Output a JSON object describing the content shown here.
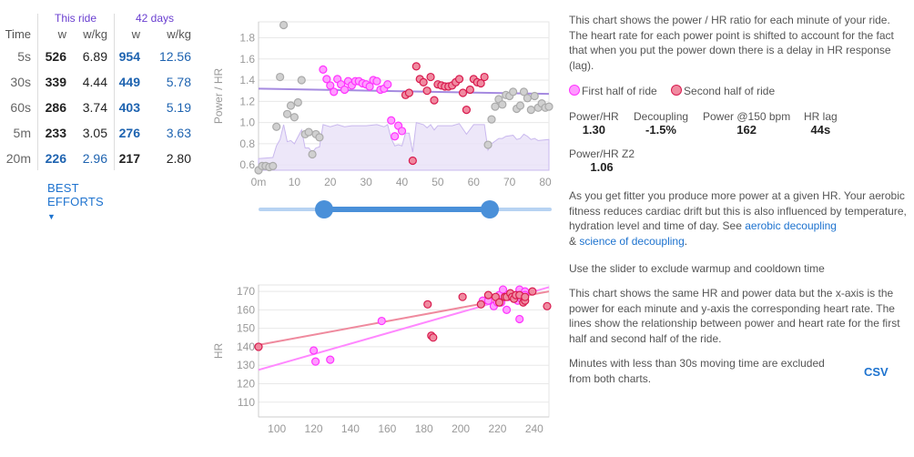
{
  "table": {
    "this_ride_label": "This ride",
    "days_label": "42 days",
    "time_header": "Time",
    "w_header": "w",
    "wkg_header": "w/kg",
    "rows": [
      {
        "time": "5s",
        "w": "526",
        "wkg": "6.89",
        "w42": "954",
        "wkg42": "12.56"
      },
      {
        "time": "30s",
        "w": "339",
        "wkg": "4.44",
        "w42": "449",
        "wkg42": "5.78"
      },
      {
        "time": "60s",
        "w": "286",
        "wkg": "3.74",
        "w42": "403",
        "wkg42": "5.19"
      },
      {
        "time": "5m",
        "w": "233",
        "wkg": "3.05",
        "w42": "276",
        "wkg42": "3.63"
      },
      {
        "time": "20m",
        "w": "226",
        "wkg": "2.96",
        "w42": "217",
        "wkg42": "2.80"
      }
    ],
    "best_efforts_label": "BEST EFFORTS",
    "best_efforts_icon": "caret-down-icon"
  },
  "colors": {
    "first_half": "#ff44ff",
    "second_half": "#e0305a",
    "trend": "#a58ae0",
    "gray_point": "#c8c8c8",
    "slider": "#4a90d9",
    "link": "#1e73cf"
  },
  "slider": {
    "range_minutes": [
      18,
      64
    ],
    "max_minutes": 81
  },
  "info": {
    "intro": "This chart shows the power / HR ratio for each minute of your ride. The heart rate for each power point is shifted to account for the fact that when you put the power down there is a delay in HR response (lag).",
    "legend_first": "First half of ride",
    "legend_second": "Second half of ride",
    "stats": [
      {
        "label": "Power/HR",
        "value": "1.30"
      },
      {
        "label": "Decoupling",
        "value": "-1.5%"
      },
      {
        "label": "Power @150 bpm",
        "value": "162"
      },
      {
        "label": "HR lag",
        "value": "44s"
      },
      {
        "label": "Power/HR Z2",
        "value": "1.06"
      }
    ],
    "fitness_text": "As you get fitter you produce more power at a given HR. Your aerobic fitness reduces cardiac drift but this is also influenced by temperature, hydration level and time of day. See",
    "link_aerobic": "aerobic decoupling",
    "amp": "&",
    "link_science": "science of decoupling",
    "period": ".",
    "slider_text": "Use the slider to exclude warmup and cooldown time",
    "scatter_text": "This chart shows the same HR and power data but the x-axis is the power for each minute and y-axis the corresponding heart rate. The lines show the relationship between power and heart rate for the first half and second half of the ride.",
    "excluded_text": "Minutes with less than 30s moving time are excluded from both charts.",
    "csv_label": "CSV"
  },
  "chart_data": [
    {
      "type": "scatter",
      "ylabel": "Power / HR",
      "xlabel": "",
      "xlim": [
        0,
        81
      ],
      "ylim": [
        0.55,
        1.95
      ],
      "xticks": [
        "0m",
        "10",
        "20",
        "30",
        "40",
        "50",
        "60",
        "70",
        "80"
      ],
      "xtick_values": [
        0,
        10,
        20,
        30,
        40,
        50,
        60,
        70,
        80
      ],
      "yticks": [
        "0.6",
        "0.8",
        "1.0",
        "1.2",
        "1.4",
        "1.6",
        "1.8"
      ],
      "ytick_values": [
        0.6,
        0.8,
        1.0,
        1.2,
        1.4,
        1.6,
        1.8
      ],
      "grid": true,
      "trend": [
        [
          0,
          1.32
        ],
        [
          81,
          1.27
        ]
      ],
      "series": [
        {
          "name": "excluded",
          "color": "gray",
          "points": [
            [
              0,
              0.55
            ],
            [
              1,
              0.59
            ],
            [
              2,
              0.59
            ],
            [
              3,
              0.58
            ],
            [
              4,
              0.59
            ],
            [
              5,
              0.96
            ],
            [
              6,
              1.43
            ],
            [
              7,
              1.92
            ],
            [
              8,
              1.08
            ],
            [
              9,
              1.16
            ],
            [
              10,
              1.05
            ],
            [
              11,
              1.19
            ],
            [
              12,
              1.4
            ],
            [
              13,
              0.89
            ],
            [
              14,
              0.91
            ],
            [
              15,
              0.7
            ],
            [
              16,
              0.89
            ],
            [
              17,
              0.86
            ],
            [
              64,
              0.79
            ],
            [
              65,
              1.03
            ],
            [
              66,
              1.15
            ],
            [
              67,
              1.22
            ],
            [
              68,
              1.17
            ],
            [
              69,
              1.26
            ],
            [
              70,
              1.25
            ],
            [
              71,
              1.29
            ],
            [
              72,
              1.13
            ],
            [
              73,
              1.16
            ],
            [
              74,
              1.29
            ],
            [
              75,
              1.23
            ],
            [
              76,
              1.12
            ],
            [
              77,
              1.25
            ],
            [
              78,
              1.14
            ],
            [
              79,
              1.18
            ],
            [
              80,
              1.14
            ],
            [
              81,
              1.15
            ]
          ]
        },
        {
          "name": "First half of ride",
          "points": [
            [
              18,
              1.5
            ],
            [
              19,
              1.41
            ],
            [
              20,
              1.35
            ],
            [
              21,
              1.29
            ],
            [
              22,
              1.41
            ],
            [
              23,
              1.36
            ],
            [
              24,
              1.31
            ],
            [
              25,
              1.39
            ],
            [
              26,
              1.35
            ],
            [
              27,
              1.39
            ],
            [
              28,
              1.39
            ],
            [
              29,
              1.37
            ],
            [
              30,
              1.36
            ],
            [
              31,
              1.34
            ],
            [
              32,
              1.4
            ],
            [
              33,
              1.39
            ],
            [
              34,
              1.31
            ],
            [
              35,
              1.32
            ],
            [
              36,
              1.36
            ],
            [
              37,
              1.02
            ],
            [
              38,
              0.87
            ],
            [
              39,
              0.97
            ],
            [
              40,
              0.92
            ]
          ]
        },
        {
          "name": "Second half of ride",
          "points": [
            [
              41,
              1.26
            ],
            [
              42,
              1.28
            ],
            [
              43,
              0.64
            ],
            [
              44,
              1.53
            ],
            [
              45,
              1.41
            ],
            [
              46,
              1.38
            ],
            [
              47,
              1.3
            ],
            [
              48,
              1.43
            ],
            [
              49,
              1.21
            ],
            [
              50,
              1.36
            ],
            [
              51,
              1.35
            ],
            [
              52,
              1.34
            ],
            [
              53,
              1.34
            ],
            [
              54,
              1.35
            ],
            [
              55,
              1.38
            ],
            [
              56,
              1.41
            ],
            [
              57,
              1.28
            ],
            [
              58,
              1.12
            ],
            [
              59,
              1.31
            ],
            [
              60,
              1.41
            ],
            [
              61,
              1.38
            ],
            [
              62,
              1.37
            ],
            [
              63,
              1.43
            ]
          ]
        }
      ],
      "area": [
        [
          0,
          0.66
        ],
        [
          4,
          0.67
        ],
        [
          5,
          0.78
        ],
        [
          6,
          0.84
        ],
        [
          7,
          0.98
        ],
        [
          8,
          0.82
        ],
        [
          9,
          0.83
        ],
        [
          10,
          0.8
        ],
        [
          12,
          0.93
        ],
        [
          13,
          0.76
        ],
        [
          14,
          0.76
        ],
        [
          15,
          0.72
        ],
        [
          16,
          0.76
        ],
        [
          17,
          0.77
        ],
        [
          18,
          0.98
        ],
        [
          20,
          0.96
        ],
        [
          22,
          0.98
        ],
        [
          24,
          0.96
        ],
        [
          26,
          0.97
        ],
        [
          30,
          0.97
        ],
        [
          33,
          0.98
        ],
        [
          35,
          0.96
        ],
        [
          36,
          0.98
        ],
        [
          37,
          0.85
        ],
        [
          38,
          0.78
        ],
        [
          39,
          0.79
        ],
        [
          40,
          0.78
        ],
        [
          41,
          0.9
        ],
        [
          42,
          0.9
        ],
        [
          43,
          0.72
        ],
        [
          44,
          1.0
        ],
        [
          46,
          0.98
        ],
        [
          47,
          0.95
        ],
        [
          48,
          0.98
        ],
        [
          49,
          0.93
        ],
        [
          50,
          0.97
        ],
        [
          54,
          0.97
        ],
        [
          56,
          0.99
        ],
        [
          57,
          0.94
        ],
        [
          58,
          0.89
        ],
        [
          60,
          0.98
        ],
        [
          63,
          0.98
        ],
        [
          64,
          0.74
        ],
        [
          65,
          0.8
        ],
        [
          67,
          0.85
        ],
        [
          68,
          0.85
        ],
        [
          69,
          0.87
        ],
        [
          71,
          0.88
        ],
        [
          72,
          0.84
        ],
        [
          73,
          0.85
        ],
        [
          74,
          0.89
        ],
        [
          75,
          0.87
        ],
        [
          76,
          0.84
        ],
        [
          77,
          0.85
        ],
        [
          78,
          0.83
        ],
        [
          81,
          0.84
        ]
      ]
    },
    {
      "type": "scatter",
      "ylabel": "HR",
      "xlabel": "",
      "xlim": [
        90,
        248
      ],
      "ylim": [
        102,
        173.5
      ],
      "xticks": [
        "100",
        "120",
        "140",
        "160",
        "180",
        "200",
        "220",
        "240"
      ],
      "xtick_values": [
        100,
        120,
        140,
        160,
        180,
        200,
        220,
        240
      ],
      "yticks": [
        "110",
        "120",
        "130",
        "140",
        "150",
        "160",
        "170"
      ],
      "ytick_values": [
        110,
        120,
        130,
        140,
        150,
        160,
        170
      ],
      "grid": true,
      "lines": [
        {
          "name": "First half of ride",
          "points": [
            [
              90,
              127.5
            ],
            [
              248,
              172.3
            ]
          ]
        },
        {
          "name": "Second half of ride",
          "points": [
            [
              90,
              141
            ],
            [
              248,
              170
            ]
          ]
        }
      ],
      "series": [
        {
          "name": "First half of ride",
          "points": [
            [
              120,
              138
            ],
            [
              121,
              132
            ],
            [
              129,
              133
            ],
            [
              157,
              154
            ],
            [
              212,
              165
            ],
            [
              215,
              165
            ],
            [
              218,
              162
            ],
            [
              220,
              164
            ],
            [
              221,
              168
            ],
            [
              222,
              164
            ],
            [
              223,
              171
            ],
            [
              225,
              160
            ],
            [
              226,
              167
            ],
            [
              228,
              168
            ],
            [
              229,
              166
            ],
            [
              230,
              167
            ],
            [
              231,
              165
            ],
            [
              232,
              171
            ],
            [
              232,
              155
            ],
            [
              233,
              166
            ],
            [
              235,
              170
            ],
            [
              235,
              168
            ]
          ]
        },
        {
          "name": "Second half of ride",
          "points": [
            [
              90,
              140
            ],
            [
              182,
              163
            ],
            [
              184,
              146
            ],
            [
              185,
              145
            ],
            [
              201,
              167
            ],
            [
              211,
              163
            ],
            [
              215,
              168
            ],
            [
              219,
              167
            ],
            [
              221,
              164
            ],
            [
              224,
              167
            ],
            [
              225,
              167
            ],
            [
              227,
              169
            ],
            [
              228,
              167
            ],
            [
              229,
              166
            ],
            [
              230,
              168
            ],
            [
              232,
              168
            ],
            [
              234,
              164
            ],
            [
              235,
              165
            ],
            [
              235,
              167
            ],
            [
              239,
              170
            ],
            [
              247,
              162
            ]
          ]
        }
      ]
    }
  ]
}
